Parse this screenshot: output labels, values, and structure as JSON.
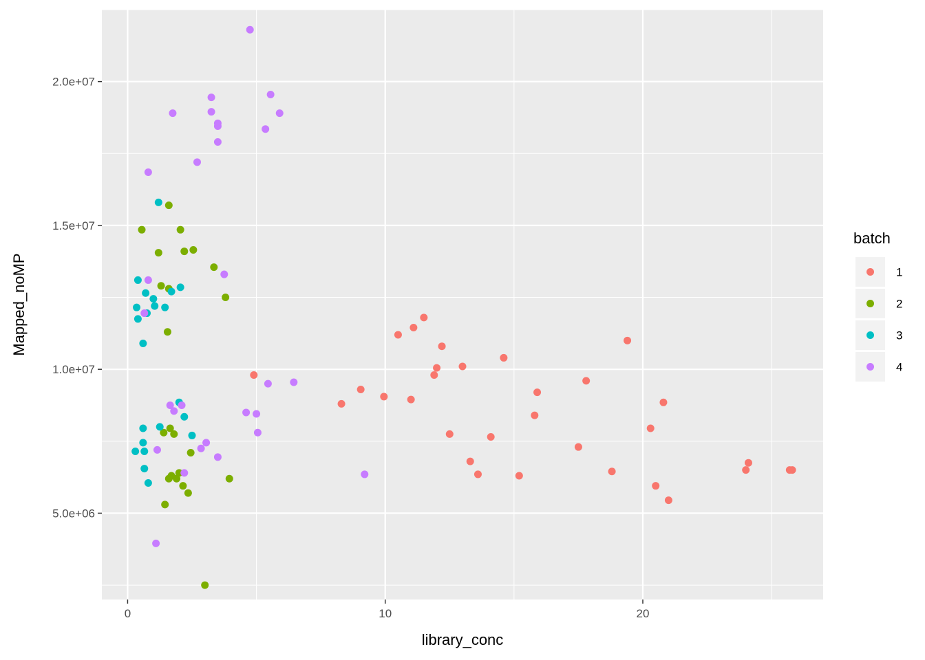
{
  "chart_data": {
    "type": "scatter",
    "xlabel": "library_conc",
    "ylabel": "Mapped_noMP",
    "xlim": [
      -1,
      27
    ],
    "ylim": [
      2000000,
      22500000
    ],
    "x_ticks": [
      0,
      10,
      20
    ],
    "x_tick_labels": [
      "0",
      "10",
      "20"
    ],
    "y_ticks": [
      5000000,
      10000000,
      15000000,
      20000000
    ],
    "y_tick_labels": [
      "5.0e+06",
      "1.0e+07",
      "1.5e+07",
      "2.0e+07"
    ],
    "grid": true,
    "legend": {
      "title": "batch",
      "position": "right"
    },
    "series": [
      {
        "name": "1",
        "color": "#F8766D",
        "points": [
          [
            4.9,
            9800000
          ],
          [
            8.3,
            8800000
          ],
          [
            9.05,
            9300000
          ],
          [
            9.95,
            9050000
          ],
          [
            10.5,
            11200000
          ],
          [
            11.0,
            8950000
          ],
          [
            11.1,
            11450000
          ],
          [
            11.5,
            11800000
          ],
          [
            11.9,
            9800000
          ],
          [
            12.0,
            10050000
          ],
          [
            12.2,
            10800000
          ],
          [
            12.5,
            7750000
          ],
          [
            13.0,
            10100000
          ],
          [
            13.3,
            6800000
          ],
          [
            13.6,
            6350000
          ],
          [
            14.1,
            7650000
          ],
          [
            14.6,
            10400000
          ],
          [
            15.2,
            6300000
          ],
          [
            15.8,
            8400000
          ],
          [
            15.9,
            9200000
          ],
          [
            17.5,
            7300000
          ],
          [
            17.8,
            9600000
          ],
          [
            18.8,
            6450000
          ],
          [
            19.4,
            11000000
          ],
          [
            20.3,
            7950000
          ],
          [
            20.5,
            5950000
          ],
          [
            20.8,
            8850000
          ],
          [
            21.0,
            5450000
          ],
          [
            24.0,
            6500000
          ],
          [
            24.1,
            6750000
          ],
          [
            25.7,
            6500000
          ],
          [
            25.8,
            6500000
          ]
        ]
      },
      {
        "name": "2",
        "color": "#7CAE00",
        "points": [
          [
            0.55,
            14850000
          ],
          [
            1.2,
            14050000
          ],
          [
            1.3,
            12900000
          ],
          [
            1.4,
            7800000
          ],
          [
            1.45,
            5300000
          ],
          [
            1.55,
            11300000
          ],
          [
            1.6,
            12800000
          ],
          [
            1.6,
            15700000
          ],
          [
            1.6,
            6200000
          ],
          [
            1.65,
            7950000
          ],
          [
            1.7,
            6300000
          ],
          [
            1.8,
            7750000
          ],
          [
            1.9,
            6200000
          ],
          [
            2.0,
            6400000
          ],
          [
            2.05,
            14850000
          ],
          [
            2.15,
            5950000
          ],
          [
            2.2,
            14100000
          ],
          [
            2.35,
            5700000
          ],
          [
            2.45,
            7100000
          ],
          [
            2.55,
            14150000
          ],
          [
            3.0,
            2500000
          ],
          [
            3.35,
            13550000
          ],
          [
            3.8,
            12500000
          ],
          [
            3.95,
            6200000
          ]
        ]
      },
      {
        "name": "3",
        "color": "#00BFC4",
        "points": [
          [
            0.3,
            7150000
          ],
          [
            0.35,
            12150000
          ],
          [
            0.4,
            11750000
          ],
          [
            0.4,
            13100000
          ],
          [
            0.6,
            10900000
          ],
          [
            0.6,
            7950000
          ],
          [
            0.6,
            7450000
          ],
          [
            0.65,
            7150000
          ],
          [
            0.65,
            6550000
          ],
          [
            0.7,
            12650000
          ],
          [
            0.75,
            11950000
          ],
          [
            0.8,
            6050000
          ],
          [
            1.0,
            12450000
          ],
          [
            1.05,
            12200000
          ],
          [
            1.2,
            15800000
          ],
          [
            1.25,
            8000000
          ],
          [
            1.45,
            12150000
          ],
          [
            1.7,
            12700000
          ],
          [
            2.0,
            8850000
          ],
          [
            2.05,
            12850000
          ],
          [
            2.2,
            8350000
          ],
          [
            2.5,
            7700000
          ]
        ]
      },
      {
        "name": "4",
        "color": "#C77CFF",
        "points": [
          [
            0.65,
            11950000
          ],
          [
            0.8,
            16850000
          ],
          [
            0.8,
            13100000
          ],
          [
            1.1,
            3950000
          ],
          [
            1.15,
            7200000
          ],
          [
            1.65,
            8750000
          ],
          [
            1.75,
            18900000
          ],
          [
            1.8,
            8550000
          ],
          [
            2.1,
            8750000
          ],
          [
            2.2,
            6400000
          ],
          [
            2.7,
            17200000
          ],
          [
            2.85,
            7250000
          ],
          [
            3.05,
            7450000
          ],
          [
            3.25,
            19450000
          ],
          [
            3.25,
            18950000
          ],
          [
            3.5,
            18550000
          ],
          [
            3.5,
            18450000
          ],
          [
            3.5,
            17900000
          ],
          [
            3.5,
            6950000
          ],
          [
            3.75,
            13300000
          ],
          [
            4.6,
            8500000
          ],
          [
            4.75,
            21800000
          ],
          [
            5.0,
            8450000
          ],
          [
            5.05,
            7800000
          ],
          [
            5.35,
            18350000
          ],
          [
            5.45,
            9500000
          ],
          [
            5.55,
            19550000
          ],
          [
            5.9,
            18900000
          ],
          [
            6.45,
            9550000
          ],
          [
            9.2,
            6350000
          ]
        ]
      }
    ]
  }
}
